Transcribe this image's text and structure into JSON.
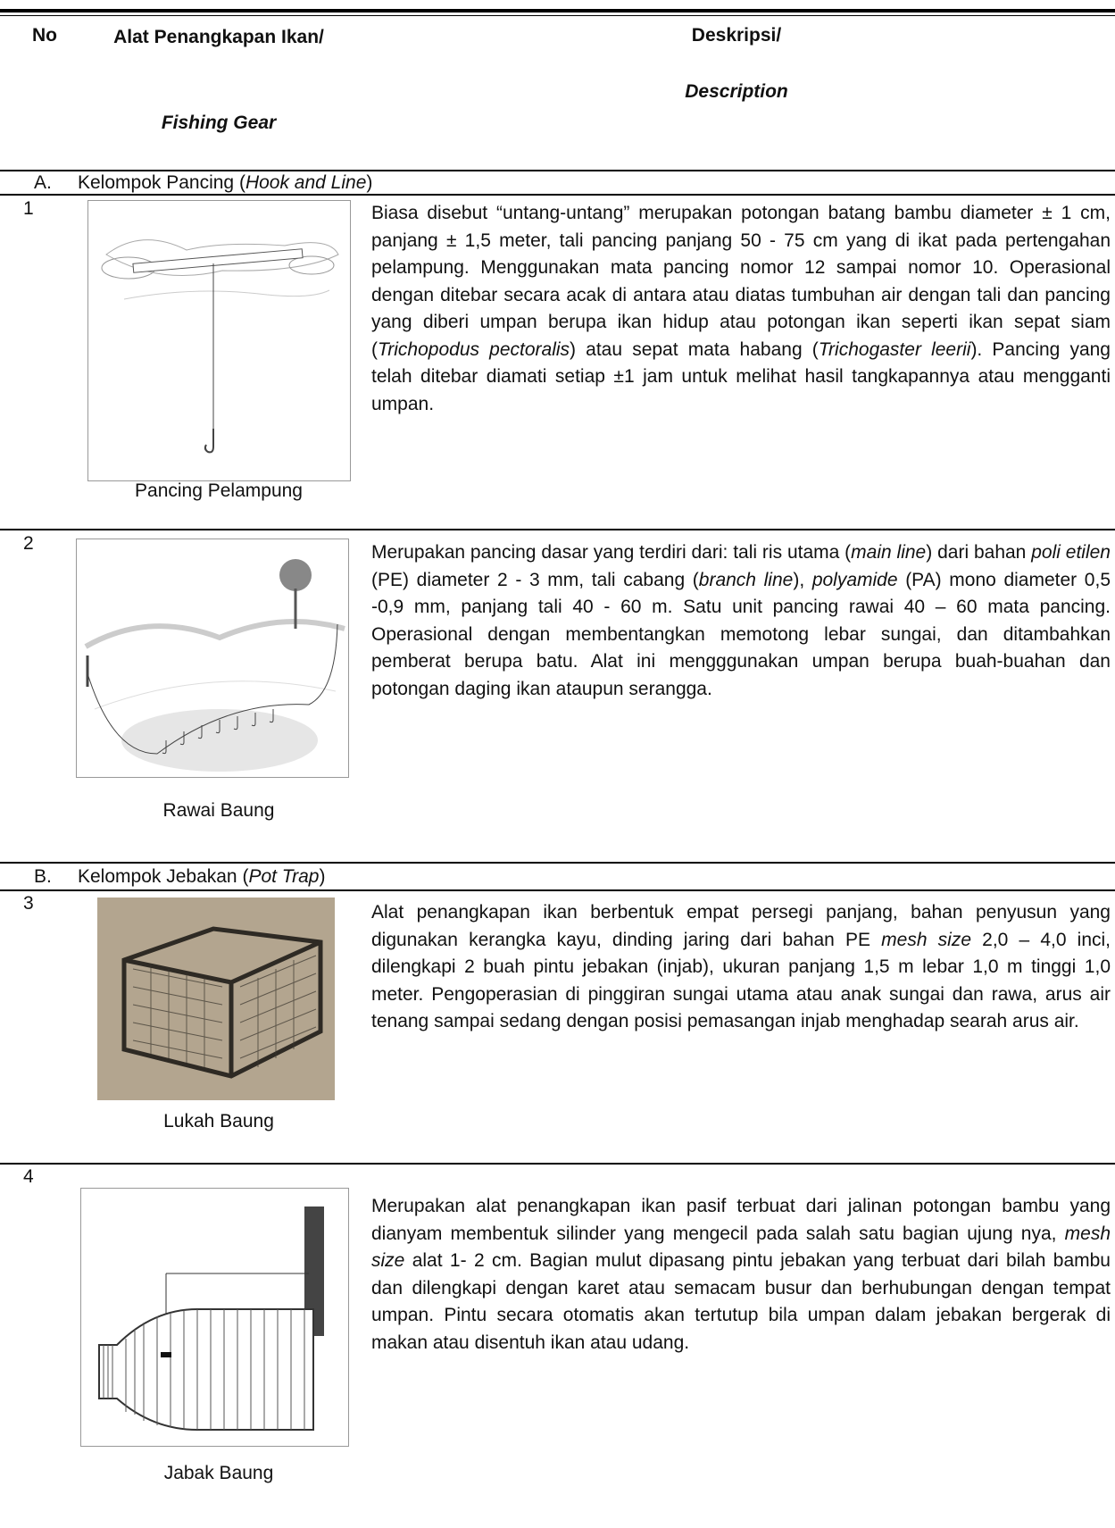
{
  "header": {
    "no": "No",
    "gear": "Alat Penangkapan Ikan/",
    "gear_en": "Fishing Gear",
    "desc": "Deskripsi/",
    "desc_en": "Description"
  },
  "groups": [
    {
      "letter": "A.",
      "label": [
        "Kelompok Pancing (",
        {
          "italic": "Hook and Line"
        },
        ")"
      ],
      "rows": [
        {
          "no": "1",
          "caption": "Pancing Pelampung",
          "description": [
            "Biasa disebut “untang-untang” merupakan potongan batang bambu diameter ± 1 cm, panjang ± 1,5 meter, tali pancing panjang 50 - 75 cm yang di ikat pada pertengahan pelampung. Menggunakan mata pancing nomor 12 sampai nomor 10. Operasional dengan ditebar secara acak di antara atau diatas tumbuhan air dengan tali dan pancing yang diberi umpan berupa ikan hidup atau potongan ikan seperti ikan sepat siam (",
            {
              "italic": "Trichopodus pectoralis"
            },
            ") atau sepat mata habang (",
            {
              "italic": "Trichogaster leerii"
            },
            "). Pancing yang telah ditebar diamati setiap ±1 jam untuk melihat hasil tangkapannya atau mengganti umpan."
          ]
        },
        {
          "no": "2",
          "caption": "Rawai Baung",
          "description": [
            "Merupakan pancing dasar yang terdiri dari: tali ris utama (",
            {
              "italic": "main line"
            },
            ") dari bahan ",
            {
              "italic": "poli etilen"
            },
            " (PE) diameter 2 - 3 mm, tali cabang (",
            {
              "italic": "branch line"
            },
            "), ",
            {
              "italic": "polyamide"
            },
            " (PA) mono diameter 0,5 -0,9 mm, panjang tali 40 - 60 m. Satu unit pancing rawai 40 – 60 mata pancing. Operasional dengan membentangkan memotong lebar sungai, dan ditambahkan pemberat berupa batu. Alat ini mengggunakan umpan berupa buah-buahan dan potongan daging ikan ataupun serangga."
          ]
        }
      ]
    },
    {
      "letter": "B.",
      "label": [
        "Kelompok Jebakan (",
        {
          "italic": "Pot Trap"
        },
        ")"
      ],
      "rows": [
        {
          "no": "3",
          "caption": "Lukah Baung",
          "description": [
            "Alat penangkapan ikan berbentuk empat persegi panjang, bahan penyusun yang digunakan kerangka kayu, dinding jaring dari bahan PE ",
            {
              "italic": "mesh size"
            },
            " 2,0 – 4,0 inci, dilengkapi 2 buah pintu jebakan (injab), ukuran panjang 1,5 m lebar 1,0 m tinggi 1,0 meter. Pengoperasian di pinggiran sungai utama atau anak sungai dan rawa, arus air tenang sampai sedang dengan posisi pemasangan injab menghadap searah arus air."
          ]
        },
        {
          "no": "4",
          "caption": "Jabak Baung",
          "description": [
            "Merupakan alat penangkapan ikan pasif terbuat dari jalinan potongan bambu yang dianyam membentuk silinder yang mengecil pada salah satu bagian ujung nya, ",
            {
              "italic": "mesh size"
            },
            " alat 1- 2 cm. Bagian mulut dipasang pintu jebakan yang terbuat dari bilah bambu dan dilengkapi dengan karet atau semacam busur dan berhubungan dengan tempat umpan. Pintu secara otomatis akan tertutup bila umpan dalam jebakan bergerak di makan atau disentuh ikan atau udang."
          ]
        }
      ]
    }
  ]
}
